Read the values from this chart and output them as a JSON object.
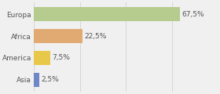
{
  "categories": [
    "Europa",
    "Africa",
    "America",
    "Asia"
  ],
  "values": [
    67.5,
    22.5,
    7.5,
    2.5
  ],
  "labels": [
    "67,5%",
    "22,5%",
    "7,5%",
    "2,5%"
  ],
  "colors": [
    "#b5cc8e",
    "#e0aa72",
    "#e8c84a",
    "#6e87c8"
  ],
  "xlim": [
    0,
    85
  ],
  "background_color": "#f0f0f0",
  "bar_height": 0.65,
  "label_fontsize": 6.5,
  "category_fontsize": 6.5,
  "figsize": [
    2.8,
    1.2
  ],
  "dpi": 100
}
